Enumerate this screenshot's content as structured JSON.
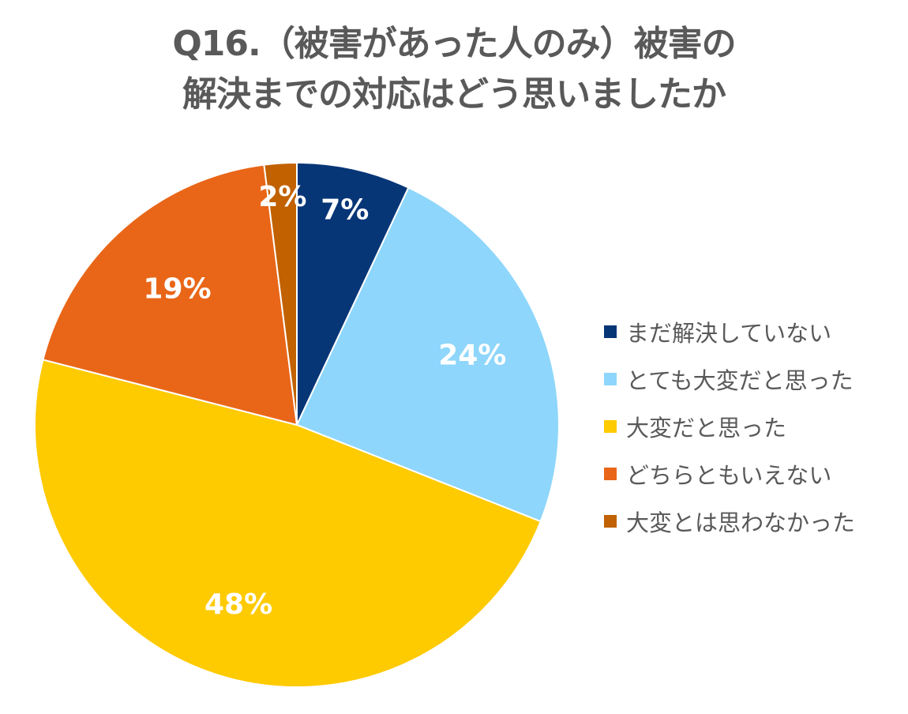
{
  "chart_data": {
    "type": "pie",
    "title_lines": [
      "Q16.（被害があった人のみ）被害の",
      "解決までの対応はどう思いましたか"
    ],
    "slices": [
      {
        "label": "まだ解決していない",
        "value": 7,
        "display": "7%",
        "color": "#073677"
      },
      {
        "label": "とても大変だと思った",
        "value": 24,
        "display": "24%",
        "color": "#8ED6FB"
      },
      {
        "label": "大変だと思った",
        "value": 48,
        "display": "48%",
        "color": "#FECA00"
      },
      {
        "label": "どちらともいえない",
        "value": 19,
        "display": "19%",
        "color": "#E96618"
      },
      {
        "label": "大変とは思わなかった",
        "value": 2,
        "display": "2%",
        "color": "#C16100"
      }
    ],
    "legend_position": "right",
    "start_angle": "12 o'clock",
    "direction": "clockwise"
  }
}
